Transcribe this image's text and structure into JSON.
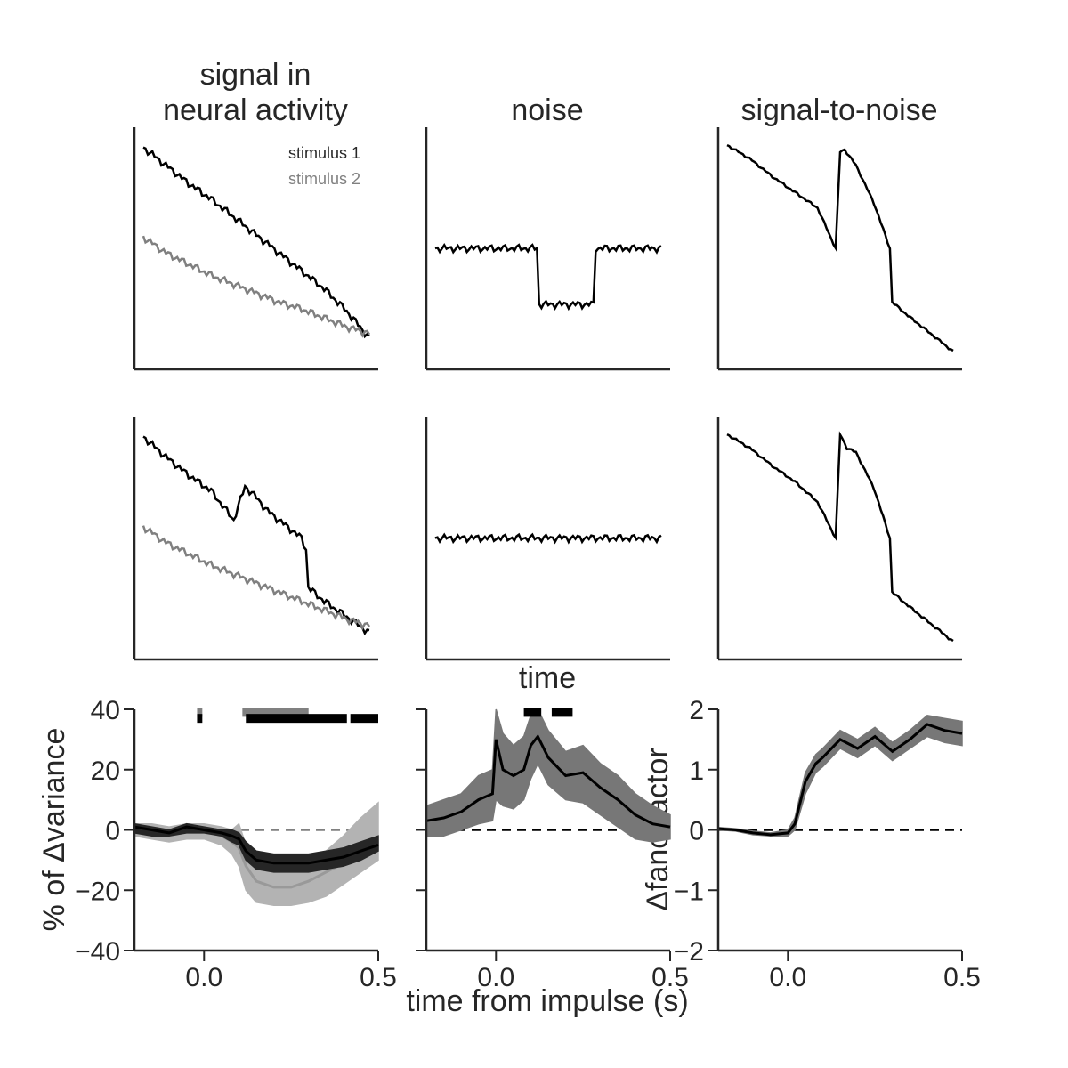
{
  "figure": {
    "col_titles": [
      "signal in",
      "neural activity",
      "noise",
      "signal-to-noise"
    ],
    "legend": [
      "stimulus 1",
      "stimulus 2"
    ],
    "time_label": "time",
    "xlabel": "time from impulse (s)",
    "colors": {
      "series1": "#000000",
      "series2": "#808080",
      "band_dark": "#262626",
      "band_light": "#b3b3b3",
      "band_mid": "#777777"
    }
  },
  "chart_data": [
    {
      "id": "r1c1",
      "type": "line",
      "ylim": [
        0,
        1
      ],
      "series": [
        {
          "name": "stimulus 1",
          "color": "#000000",
          "x": [
            0,
            0.1,
            0.2,
            0.3,
            0.4,
            0.5,
            0.6,
            0.7,
            0.8,
            0.9,
            1.0
          ],
          "y": [
            0.95,
            0.87,
            0.79,
            0.72,
            0.64,
            0.56,
            0.48,
            0.4,
            0.32,
            0.22,
            0.1
          ]
        },
        {
          "name": "stimulus 2",
          "color": "#808080",
          "x": [
            0,
            0.1,
            0.2,
            0.3,
            0.4,
            0.5,
            0.6,
            0.7,
            0.8,
            0.9,
            1.0
          ],
          "y": [
            0.55,
            0.48,
            0.43,
            0.38,
            0.34,
            0.3,
            0.26,
            0.23,
            0.19,
            0.15,
            0.12
          ]
        }
      ]
    },
    {
      "id": "r1c2",
      "type": "line",
      "ylim": [
        0,
        1
      ],
      "series": [
        {
          "name": "",
          "color": "#000000",
          "x": [
            0,
            0.45,
            0.46,
            0.7,
            0.71,
            1.0
          ],
          "y": [
            0.5,
            0.5,
            0.25,
            0.25,
            0.5,
            0.5
          ]
        }
      ]
    },
    {
      "id": "r1c3",
      "type": "line",
      "ylim": [
        0,
        1
      ],
      "series": [
        {
          "name": "",
          "color": "#000000",
          "x": [
            0,
            0.1,
            0.2,
            0.3,
            0.4,
            0.48,
            0.5,
            0.52,
            0.57,
            0.65,
            0.72,
            0.73,
            0.8,
            0.9,
            1.0
          ],
          "y": [
            0.96,
            0.9,
            0.82,
            0.75,
            0.68,
            0.5,
            0.93,
            0.94,
            0.87,
            0.7,
            0.5,
            0.26,
            0.2,
            0.12,
            0.04
          ]
        }
      ]
    },
    {
      "id": "r2c1",
      "type": "line",
      "ylim": [
        0,
        1
      ],
      "series": [
        {
          "name": "stimulus 1",
          "color": "#000000",
          "x": [
            0,
            0.1,
            0.2,
            0.3,
            0.4,
            0.45,
            0.5,
            0.55,
            0.6,
            0.7,
            0.72,
            0.73,
            0.8,
            0.9,
            1.0
          ],
          "y": [
            0.95,
            0.86,
            0.78,
            0.71,
            0.58,
            0.73,
            0.68,
            0.62,
            0.58,
            0.5,
            0.45,
            0.28,
            0.22,
            0.15,
            0.08
          ]
        },
        {
          "name": "stimulus 2",
          "color": "#808080",
          "x": [
            0,
            0.1,
            0.2,
            0.3,
            0.4,
            0.5,
            0.6,
            0.7,
            0.8,
            0.9,
            1.0
          ],
          "y": [
            0.55,
            0.48,
            0.43,
            0.38,
            0.34,
            0.3,
            0.26,
            0.22,
            0.18,
            0.14,
            0.11
          ]
        }
      ]
    },
    {
      "id": "r2c2",
      "type": "line",
      "ylim": [
        0,
        1
      ],
      "series": [
        {
          "name": "",
          "color": "#000000",
          "x": [
            0,
            0.25,
            0.5,
            0.75,
            1.0
          ],
          "y": [
            0.5,
            0.5,
            0.5,
            0.5,
            0.5
          ]
        }
      ]
    },
    {
      "id": "r2c3",
      "type": "line",
      "ylim": [
        0,
        1
      ],
      "series": [
        {
          "name": "",
          "color": "#000000",
          "x": [
            0,
            0.1,
            0.2,
            0.3,
            0.4,
            0.48,
            0.5,
            0.53,
            0.57,
            0.65,
            0.72,
            0.73,
            0.8,
            0.9,
            1.0
          ],
          "y": [
            0.96,
            0.9,
            0.82,
            0.75,
            0.66,
            0.5,
            0.96,
            0.9,
            0.88,
            0.72,
            0.5,
            0.26,
            0.2,
            0.12,
            0.04
          ]
        }
      ]
    },
    {
      "id": "r3c1",
      "type": "area",
      "xlim": [
        -0.2,
        0.5
      ],
      "ylim": [
        -40,
        40
      ],
      "xticks": [
        "0.0",
        "0.5"
      ],
      "xtick_values": [
        0.0,
        0.5
      ],
      "yticks": [
        "−40",
        "−20",
        "0",
        "20",
        "40"
      ],
      "ytick_values": [
        -40,
        -20,
        0,
        20,
        40
      ],
      "ylabel": "% of Δvariance",
      "zero_line_color": "#808080",
      "x": [
        -0.2,
        -0.15,
        -0.1,
        -0.05,
        0.0,
        0.05,
        0.08,
        0.1,
        0.12,
        0.15,
        0.2,
        0.25,
        0.3,
        0.35,
        0.4,
        0.45,
        0.5
      ],
      "series": [
        {
          "name": "stimulus 2",
          "color": "#999999",
          "band_color": "#b3b3b3",
          "mean": [
            0,
            0,
            -1,
            0,
            0,
            -2,
            -4,
            -6,
            -12,
            -17,
            -19,
            -19,
            -17,
            -14,
            -11,
            -8,
            -5
          ],
          "lower": [
            -2,
            -3,
            -4,
            -3,
            -3,
            -5,
            -8,
            -12,
            -20,
            -24,
            -25,
            -25,
            -24,
            -22,
            -18,
            -14,
            -10
          ],
          "upper": [
            2,
            2,
            1,
            2,
            2,
            1,
            0,
            2,
            -5,
            -10,
            -13,
            -13,
            -11,
            -7,
            -2,
            4,
            9
          ]
        },
        {
          "name": "stimulus 1",
          "color": "#000000",
          "band_color": "#262626",
          "mean": [
            1,
            0,
            -1,
            1,
            0,
            -1,
            -2,
            -3,
            -7,
            -10,
            -11,
            -11,
            -11,
            -10,
            -9,
            -7,
            -5
          ],
          "lower": [
            -1,
            -2,
            -2,
            -1,
            -1,
            -2,
            -4,
            -5,
            -10,
            -13,
            -14,
            -14,
            -14,
            -13,
            -12,
            -10,
            -7
          ],
          "upper": [
            2,
            1,
            0,
            2,
            1,
            0,
            0,
            -1,
            -4,
            -7,
            -8,
            -8,
            -8,
            -7,
            -6,
            -4,
            -2
          ]
        }
      ],
      "sig_bars": [
        {
          "color": "#808080",
          "y": 39,
          "segments": [
            [
              -0.02,
              -0.005
            ],
            [
              0.11,
              0.3
            ]
          ]
        },
        {
          "color": "#000000",
          "y": 37,
          "segments": [
            [
              -0.02,
              -0.005
            ],
            [
              0.12,
              0.41
            ],
            [
              0.42,
              0.5
            ]
          ]
        }
      ]
    },
    {
      "id": "r3c2",
      "type": "area",
      "xlim": [
        -0.2,
        0.5
      ],
      "ylim": [
        -40,
        40
      ],
      "xticks": [
        "0.0",
        "0.5"
      ],
      "xtick_values": [
        0.0,
        0.5
      ],
      "yticks": [
        "",
        "",
        "",
        "",
        ""
      ],
      "ytick_values": [
        -40,
        -20,
        0,
        20,
        40
      ],
      "zero_line_color": "#000000",
      "x": [
        -0.2,
        -0.15,
        -0.1,
        -0.05,
        -0.01,
        0.0,
        0.02,
        0.05,
        0.08,
        0.1,
        0.12,
        0.15,
        0.2,
        0.25,
        0.3,
        0.35,
        0.4,
        0.45,
        0.5
      ],
      "series": [
        {
          "name": "",
          "color": "#000000",
          "band_color": "#777777",
          "mean": [
            3,
            4,
            6,
            10,
            12,
            30,
            20,
            18,
            20,
            28,
            31,
            24,
            18,
            19,
            14,
            10,
            5,
            2,
            1
          ],
          "lower": [
            -2,
            -2,
            0,
            2,
            3,
            10,
            8,
            7,
            10,
            17,
            22,
            15,
            10,
            9,
            5,
            1,
            -3,
            -4,
            -3
          ],
          "upper": [
            8,
            10,
            12,
            18,
            20,
            40,
            32,
            28,
            31,
            38,
            40,
            33,
            26,
            28,
            22,
            18,
            12,
            8,
            5
          ]
        }
      ],
      "sig_bars": [
        {
          "color": "#000000",
          "y": 39,
          "segments": [
            [
              0.08,
              0.13
            ],
            [
              0.16,
              0.22
            ]
          ]
        }
      ]
    },
    {
      "id": "r3c3",
      "type": "area",
      "xlim": [
        -0.2,
        0.5
      ],
      "ylim": [
        -2,
        2
      ],
      "xticks": [
        "0.0",
        "0.5"
      ],
      "xtick_values": [
        0.0,
        0.5
      ],
      "yticks": [
        "−2",
        "−1",
        "0",
        "1",
        "2"
      ],
      "ytick_values": [
        -2,
        -1,
        0,
        1,
        2
      ],
      "ylabel": "Δfano factor",
      "zero_line_color": "#000000",
      "x": [
        -0.2,
        -0.15,
        -0.1,
        -0.05,
        0.0,
        0.02,
        0.05,
        0.08,
        0.1,
        0.15,
        0.2,
        0.25,
        0.3,
        0.35,
        0.4,
        0.45,
        0.5
      ],
      "series": [
        {
          "name": "",
          "color": "#000000",
          "band_color": "#777777",
          "mean": [
            0.02,
            0,
            -0.05,
            -0.08,
            -0.05,
            0.1,
            0.8,
            1.1,
            1.2,
            1.5,
            1.35,
            1.55,
            1.3,
            1.5,
            1.75,
            1.65,
            1.6
          ],
          "lower": [
            0.0,
            -0.02,
            -0.08,
            -0.1,
            -0.1,
            0.0,
            0.6,
            0.95,
            1.05,
            1.35,
            1.2,
            1.4,
            1.15,
            1.35,
            1.55,
            1.45,
            1.4
          ],
          "upper": [
            0.04,
            0.02,
            -0.02,
            -0.05,
            0.0,
            0.2,
            0.95,
            1.25,
            1.35,
            1.65,
            1.5,
            1.7,
            1.45,
            1.65,
            1.9,
            1.85,
            1.8
          ]
        }
      ]
    }
  ]
}
